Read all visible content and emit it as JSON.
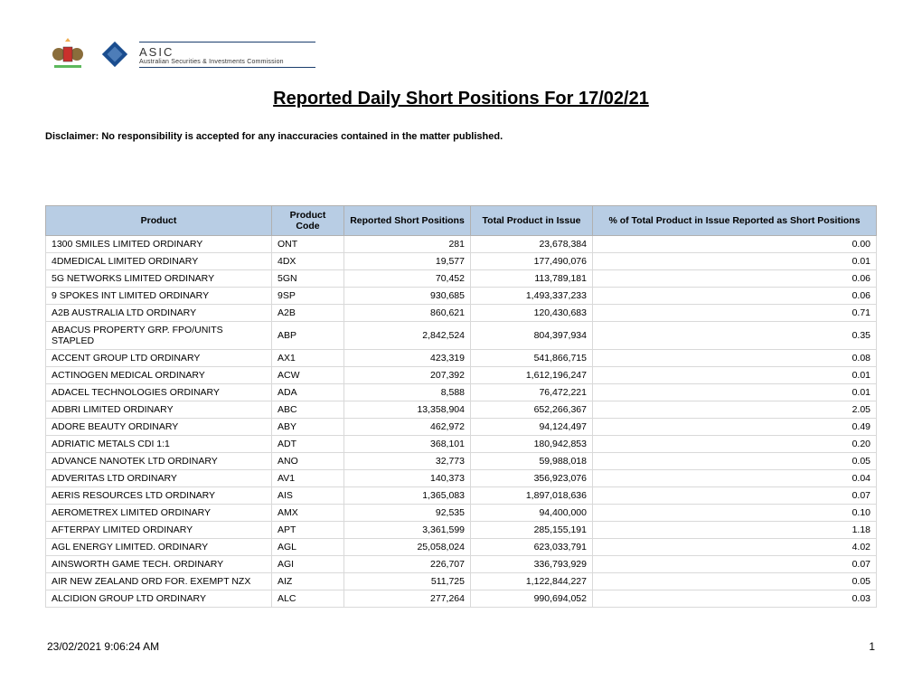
{
  "header": {
    "acronym": "ASIC",
    "fullname": "Australian Securities & Investments Commission"
  },
  "title": "Reported Daily Short Positions For 17/02/21",
  "disclaimer": "Disclaimer: No responsibility is accepted for any inaccuracies contained in the matter published.",
  "columns": [
    "Product",
    "Product Code",
    "Reported Short Positions",
    "Total Product in Issue",
    "% of Total Product in Issue Reported as Short Positions"
  ],
  "rows": [
    [
      "1300 SMILES LIMITED ORDINARY",
      "ONT",
      "281",
      "23,678,384",
      "0.00"
    ],
    [
      "4DMEDICAL LIMITED ORDINARY",
      "4DX",
      "19,577",
      "177,490,076",
      "0.01"
    ],
    [
      "5G NETWORKS LIMITED ORDINARY",
      "5GN",
      "70,452",
      "113,789,181",
      "0.06"
    ],
    [
      "9 SPOKES INT LIMITED ORDINARY",
      "9SP",
      "930,685",
      "1,493,337,233",
      "0.06"
    ],
    [
      "A2B AUSTRALIA LTD ORDINARY",
      "A2B",
      "860,621",
      "120,430,683",
      "0.71"
    ],
    [
      "ABACUS PROPERTY GRP. FPO/UNITS STAPLED",
      "ABP",
      "2,842,524",
      "804,397,934",
      "0.35"
    ],
    [
      "ACCENT GROUP LTD ORDINARY",
      "AX1",
      "423,319",
      "541,866,715",
      "0.08"
    ],
    [
      "ACTINOGEN MEDICAL ORDINARY",
      "ACW",
      "207,392",
      "1,612,196,247",
      "0.01"
    ],
    [
      "ADACEL TECHNOLOGIES ORDINARY",
      "ADA",
      "8,588",
      "76,472,221",
      "0.01"
    ],
    [
      "ADBRI LIMITED ORDINARY",
      "ABC",
      "13,358,904",
      "652,266,367",
      "2.05"
    ],
    [
      "ADORE BEAUTY ORDINARY",
      "ABY",
      "462,972",
      "94,124,497",
      "0.49"
    ],
    [
      "ADRIATIC METALS CDI 1:1",
      "ADT",
      "368,101",
      "180,942,853",
      "0.20"
    ],
    [
      "ADVANCE NANOTEK LTD ORDINARY",
      "ANO",
      "32,773",
      "59,988,018",
      "0.05"
    ],
    [
      "ADVERITAS LTD ORDINARY",
      "AV1",
      "140,373",
      "356,923,076",
      "0.04"
    ],
    [
      "AERIS RESOURCES LTD ORDINARY",
      "AIS",
      "1,365,083",
      "1,897,018,636",
      "0.07"
    ],
    [
      "AEROMETREX LIMITED ORDINARY",
      "AMX",
      "92,535",
      "94,400,000",
      "0.10"
    ],
    [
      "AFTERPAY LIMITED ORDINARY",
      "APT",
      "3,361,599",
      "285,155,191",
      "1.18"
    ],
    [
      "AGL ENERGY LIMITED. ORDINARY",
      "AGL",
      "25,058,024",
      "623,033,791",
      "4.02"
    ],
    [
      "AINSWORTH GAME TECH. ORDINARY",
      "AGI",
      "226,707",
      "336,793,929",
      "0.07"
    ],
    [
      "AIR NEW ZEALAND ORD FOR. EXEMPT NZX",
      "AIZ",
      "511,725",
      "1,122,844,227",
      "0.05"
    ],
    [
      "ALCIDION GROUP LTD ORDINARY",
      "ALC",
      "277,264",
      "990,694,052",
      "0.03"
    ]
  ],
  "footer": {
    "timestamp": "23/02/2021  9:06:24 AM",
    "page": "1"
  },
  "styling": {
    "header_bg": "#b8cde4",
    "border_color": "#d9d9d9",
    "header_border": "#b0b0b0",
    "font_family": "Verdana",
    "title_fontsize": 20,
    "body_fontsize": 10.5,
    "logo_accent": "#1a3d6d"
  }
}
